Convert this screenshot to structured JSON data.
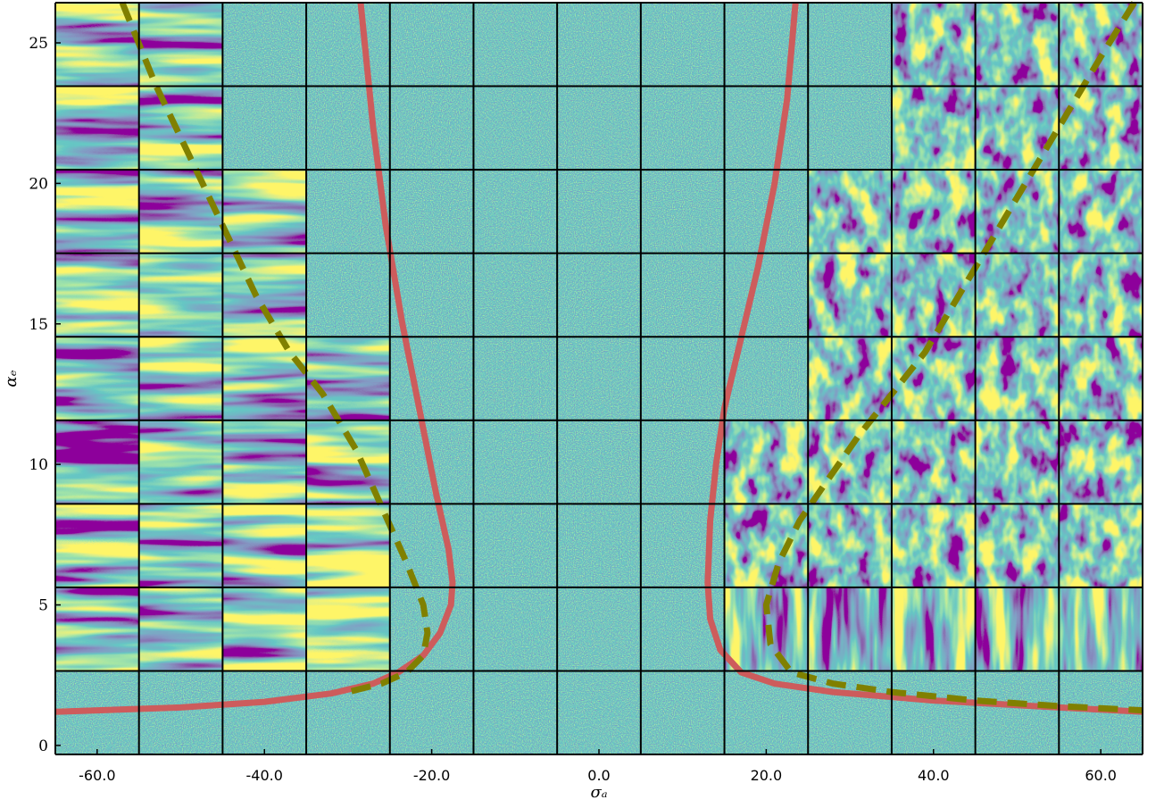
{
  "chart_data": {
    "type": "line",
    "xlabel": "σₐ",
    "ylabel": "αₑ",
    "xlim": [
      -65,
      65
    ],
    "ylim": [
      -0.32,
      26.43
    ],
    "xticks": [
      {
        "value": -60,
        "label": "-60.0"
      },
      {
        "value": -40,
        "label": "-40.0"
      },
      {
        "value": -20,
        "label": "-20.0"
      },
      {
        "value": 0,
        "label": "0.0"
      },
      {
        "value": 20,
        "label": "20.0"
      },
      {
        "value": 40,
        "label": "40.0"
      },
      {
        "value": 60,
        "label": "60.0"
      }
    ],
    "yticks": [
      0,
      5,
      10,
      15,
      20,
      25
    ],
    "series": [
      {
        "color": "#cd5c5c",
        "style": "solid",
        "x": [
          -65,
          -50,
          -40,
          -32,
          -27,
          -24,
          -21,
          -19,
          -17.7,
          -17.5,
          -18,
          -19.5,
          -21.5,
          -23.5,
          -25.5,
          -27,
          -28.5,
          null,
          23.5,
          22.5,
          21,
          19,
          17,
          15,
          14,
          13.3,
          13,
          13.3,
          14.5,
          17,
          21,
          28,
          40,
          55,
          65
        ],
        "y": [
          1.2,
          1.35,
          1.55,
          1.85,
          2.2,
          2.6,
          3.2,
          4,
          5,
          5.8,
          7,
          9,
          12,
          15,
          18.5,
          22,
          26.43,
          null,
          26.43,
          23,
          20,
          17,
          14.5,
          12,
          10,
          8,
          5.8,
          4.5,
          3.4,
          2.6,
          2.2,
          1.9,
          1.6,
          1.35,
          1.2
        ]
      },
      {
        "color": "#808000",
        "style": "dashed",
        "x": [
          -57,
          -53,
          -49,
          -45,
          -41,
          -37,
          -33,
          -29,
          -26,
          -23,
          -21,
          -20.5,
          -21,
          -23,
          -26,
          -30
        ],
        "y": [
          26.43,
          23.5,
          21,
          18.5,
          16,
          14,
          12.5,
          10.5,
          8.5,
          6.5,
          5,
          4,
          3.2,
          2.6,
          2.2,
          1.9
        ]
      },
      {
        "color": "#808000",
        "style": "dashed",
        "x": [
          64,
          60,
          55,
          51,
          47,
          43,
          39,
          35,
          31,
          27,
          24,
          21.5,
          20,
          20.5,
          23,
          28,
          35,
          45,
          55,
          65
        ],
        "y": [
          26.43,
          24.5,
          22,
          20,
          18,
          16,
          14,
          12.5,
          11,
          9.3,
          8,
          6.5,
          5,
          3.6,
          2.6,
          2.2,
          1.9,
          1.6,
          1.4,
          1.25
        ]
      }
    ]
  }
}
